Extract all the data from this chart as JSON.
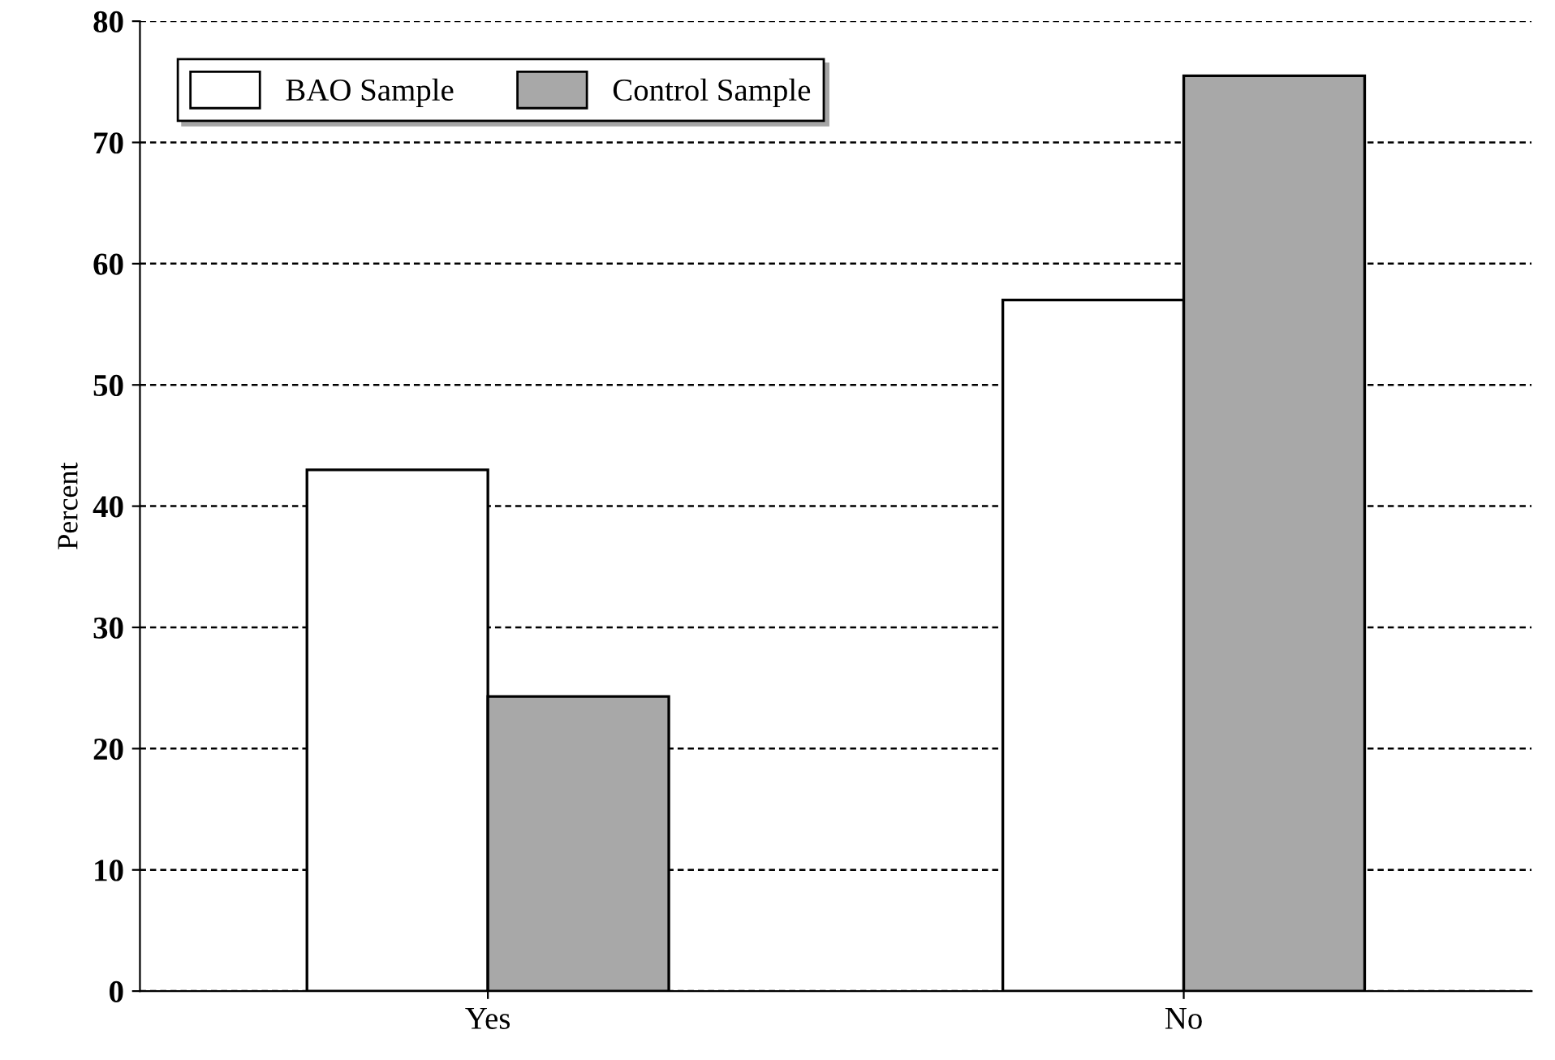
{
  "chart_data": {
    "type": "bar",
    "ylabel": "Percent",
    "categories": [
      "Yes",
      "No"
    ],
    "series": [
      {
        "name": "BAO Sample",
        "color": "#ffffff",
        "values": [
          43,
          57
        ]
      },
      {
        "name": "Control Sample",
        "color": "#a8a8a8",
        "values": [
          24.3,
          75.5
        ]
      }
    ],
    "ylim": [
      0,
      80
    ],
    "yticks": [
      0,
      10,
      20,
      30,
      40,
      50,
      60,
      70,
      80
    ],
    "grid": "y",
    "legend": "top left"
  }
}
